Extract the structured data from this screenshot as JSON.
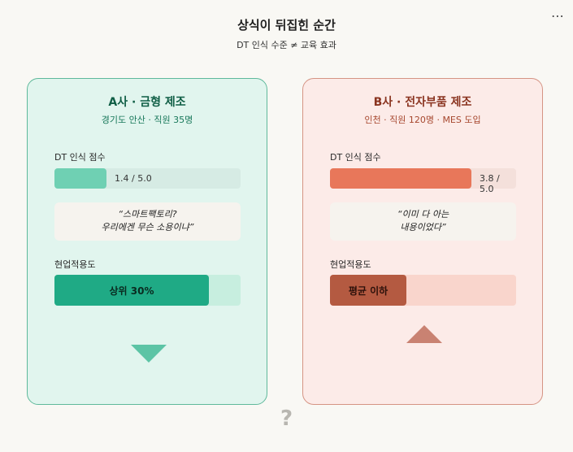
{
  "header": {
    "title": "상식이 뒤집힌 순간",
    "subtitle": "DT 인식 수준 ≠ 교육 효과",
    "more_icon": "ellipsis-icon"
  },
  "cards": [
    {
      "title": "A사 · 금형 제조",
      "subtitle": "경기도 안산 · 직원 35명",
      "score_label": "DT 인식 점수",
      "score_value": 1.4,
      "score_max": 5.0,
      "score_text": "1.4 / 5.0",
      "quote_line1": "“스마트팩토리?",
      "quote_line2": "우리에겐 무슨 소용이냐”",
      "fit_label": "현업적용도",
      "fit_text": "상위 30%",
      "fit_level": 0.83,
      "arrow": "triangle-down-icon",
      "color": "#1faa85"
    },
    {
      "title": "B사 · 전자부품 제조",
      "subtitle": "인천 · 직원 120명 · MES 도입",
      "score_label": "DT 인식 점수",
      "score_value": 3.8,
      "score_max": 5.0,
      "score_text": "3.8 / 5.0",
      "quote_line1": "“이미 다 아는",
      "quote_line2": "내용이었다”",
      "fit_label": "현업적용도",
      "fit_text": "평균 이하",
      "fit_level": 0.41,
      "arrow": "triangle-up-icon",
      "color": "#b45a41"
    }
  ],
  "footer": {
    "question_mark": "?"
  }
}
